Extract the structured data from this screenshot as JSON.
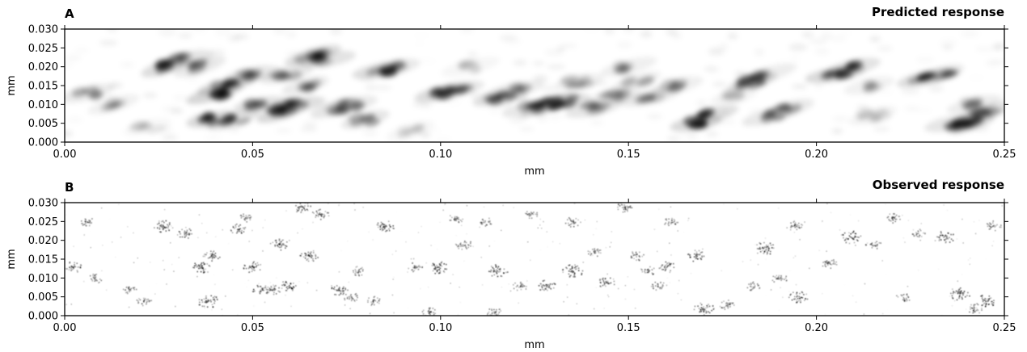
{
  "chart_data": [
    {
      "type": "heatmap",
      "panel_label": "A",
      "title": "Predicted response",
      "xlabel": "mm",
      "ylabel": "mm",
      "xlim": [
        0,
        0.25
      ],
      "ylim": [
        0,
        0.03
      ],
      "xticks": [
        "0.00",
        "0.05",
        "0.10",
        "0.15",
        "0.20",
        "0.25"
      ],
      "yticks": [
        "0.000",
        "0.005",
        "0.010",
        "0.015",
        "0.020",
        "0.025",
        "0.030"
      ],
      "colormap": "Greys",
      "style": "smooth",
      "blobs": [
        [
          0.006,
          0.013,
          0.45
        ],
        [
          0.013,
          0.01,
          0.3
        ],
        [
          0.022,
          0.004,
          0.15
        ],
        [
          0.027,
          0.02,
          0.75
        ],
        [
          0.032,
          0.022,
          0.55
        ],
        [
          0.036,
          0.02,
          0.45
        ],
        [
          0.04,
          0.013,
          0.9
        ],
        [
          0.043,
          0.015,
          0.7
        ],
        [
          0.039,
          0.006,
          0.8
        ],
        [
          0.045,
          0.006,
          0.6
        ],
        [
          0.05,
          0.018,
          0.5
        ],
        [
          0.052,
          0.01,
          0.6
        ],
        [
          0.058,
          0.008,
          0.85
        ],
        [
          0.062,
          0.01,
          0.7
        ],
        [
          0.059,
          0.018,
          0.5
        ],
        [
          0.064,
          0.015,
          0.45
        ],
        [
          0.066,
          0.023,
          0.7
        ],
        [
          0.07,
          0.022,
          0.6
        ],
        [
          0.072,
          0.009,
          0.55
        ],
        [
          0.076,
          0.01,
          0.45
        ],
        [
          0.08,
          0.006,
          0.55
        ],
        [
          0.084,
          0.019,
          0.7
        ],
        [
          0.088,
          0.02,
          0.45
        ],
        [
          0.092,
          0.003,
          0.2
        ],
        [
          0.1,
          0.013,
          0.75
        ],
        [
          0.104,
          0.014,
          0.5
        ],
        [
          0.108,
          0.02,
          0.2
        ],
        [
          0.116,
          0.012,
          0.7
        ],
        [
          0.12,
          0.014,
          0.4
        ],
        [
          0.124,
          0.009,
          0.5
        ],
        [
          0.129,
          0.01,
          0.8
        ],
        [
          0.133,
          0.011,
          0.6
        ],
        [
          0.137,
          0.016,
          0.35
        ],
        [
          0.141,
          0.009,
          0.55
        ],
        [
          0.146,
          0.012,
          0.35
        ],
        [
          0.15,
          0.02,
          0.35
        ],
        [
          0.152,
          0.016,
          0.3
        ],
        [
          0.156,
          0.012,
          0.45
        ],
        [
          0.163,
          0.015,
          0.35
        ],
        [
          0.168,
          0.005,
          0.8
        ],
        [
          0.172,
          0.007,
          0.65
        ],
        [
          0.178,
          0.012,
          0.25
        ],
        [
          0.183,
          0.016,
          0.7
        ],
        [
          0.187,
          0.018,
          0.4
        ],
        [
          0.188,
          0.007,
          0.5
        ],
        [
          0.193,
          0.009,
          0.45
        ],
        [
          0.205,
          0.018,
          0.8
        ],
        [
          0.21,
          0.02,
          0.6
        ],
        [
          0.214,
          0.015,
          0.3
        ],
        [
          0.215,
          0.007,
          0.25
        ],
        [
          0.229,
          0.017,
          0.7
        ],
        [
          0.233,
          0.018,
          0.45
        ],
        [
          0.236,
          0.005,
          0.55
        ],
        [
          0.241,
          0.005,
          0.8
        ],
        [
          0.245,
          0.008,
          0.6
        ],
        [
          0.242,
          0.01,
          0.4
        ]
      ]
    },
    {
      "type": "heatmap",
      "panel_label": "B",
      "title": "Observed response",
      "xlabel": "mm",
      "ylabel": "mm",
      "xlim": [
        0,
        0.25
      ],
      "ylim": [
        0,
        0.03
      ],
      "xticks": [
        "0.00",
        "0.05",
        "0.10",
        "0.15",
        "0.20",
        "0.25"
      ],
      "yticks": [
        "0.000",
        "0.005",
        "0.010",
        "0.015",
        "0.020",
        "0.025",
        "0.030"
      ],
      "colormap": "Greys",
      "style": "speckle",
      "blobs": [
        [
          0.002,
          0.013,
          0.6
        ],
        [
          0.006,
          0.025,
          0.4
        ],
        [
          0.008,
          0.01,
          0.4
        ],
        [
          0.017,
          0.007,
          0.35
        ],
        [
          0.021,
          0.004,
          0.4
        ],
        [
          0.026,
          0.024,
          0.8
        ],
        [
          0.032,
          0.022,
          0.5
        ],
        [
          0.036,
          0.013,
          0.85
        ],
        [
          0.039,
          0.016,
          0.6
        ],
        [
          0.038,
          0.004,
          0.85
        ],
        [
          0.046,
          0.023,
          0.6
        ],
        [
          0.048,
          0.026,
          0.35
        ],
        [
          0.05,
          0.013,
          0.7
        ],
        [
          0.052,
          0.007,
          0.6
        ],
        [
          0.055,
          0.007,
          0.5
        ],
        [
          0.057,
          0.019,
          0.7
        ],
        [
          0.059,
          0.008,
          0.7
        ],
        [
          0.063,
          0.029,
          0.7
        ],
        [
          0.065,
          0.016,
          0.75
        ],
        [
          0.068,
          0.027,
          0.6
        ],
        [
          0.073,
          0.007,
          0.7
        ],
        [
          0.076,
          0.005,
          0.4
        ],
        [
          0.078,
          0.012,
          0.4
        ],
        [
          0.082,
          0.004,
          0.4
        ],
        [
          0.085,
          0.024,
          0.75
        ],
        [
          0.093,
          0.013,
          0.4
        ],
        [
          0.099,
          0.013,
          0.85
        ],
        [
          0.097,
          0.001,
          0.45
        ],
        [
          0.104,
          0.026,
          0.4
        ],
        [
          0.106,
          0.019,
          0.5
        ],
        [
          0.112,
          0.025,
          0.35
        ],
        [
          0.115,
          0.012,
          0.8
        ],
        [
          0.114,
          0.001,
          0.45
        ],
        [
          0.121,
          0.008,
          0.4
        ],
        [
          0.124,
          0.027,
          0.35
        ],
        [
          0.128,
          0.008,
          0.75
        ],
        [
          0.135,
          0.012,
          0.85
        ],
        [
          0.135,
          0.025,
          0.5
        ],
        [
          0.141,
          0.017,
          0.4
        ],
        [
          0.144,
          0.009,
          0.6
        ],
        [
          0.149,
          0.029,
          0.55
        ],
        [
          0.152,
          0.016,
          0.4
        ],
        [
          0.155,
          0.012,
          0.4
        ],
        [
          0.158,
          0.008,
          0.4
        ],
        [
          0.16,
          0.013,
          0.6
        ],
        [
          0.161,
          0.025,
          0.35
        ],
        [
          0.168,
          0.016,
          0.7
        ],
        [
          0.17,
          0.002,
          0.8
        ],
        [
          0.176,
          0.003,
          0.45
        ],
        [
          0.183,
          0.008,
          0.35
        ],
        [
          0.186,
          0.018,
          0.85
        ],
        [
          0.19,
          0.01,
          0.4
        ],
        [
          0.195,
          0.005,
          0.75
        ],
        [
          0.194,
          0.024,
          0.5
        ],
        [
          0.203,
          0.014,
          0.55
        ],
        [
          0.209,
          0.021,
          0.8
        ],
        [
          0.215,
          0.019,
          0.4
        ],
        [
          0.22,
          0.026,
          0.45
        ],
        [
          0.223,
          0.005,
          0.35
        ],
        [
          0.227,
          0.022,
          0.3
        ],
        [
          0.234,
          0.021,
          0.75
        ],
        [
          0.238,
          0.006,
          0.85
        ],
        [
          0.242,
          0.002,
          0.45
        ],
        [
          0.245,
          0.004,
          0.8
        ],
        [
          0.247,
          0.024,
          0.4
        ]
      ]
    }
  ]
}
